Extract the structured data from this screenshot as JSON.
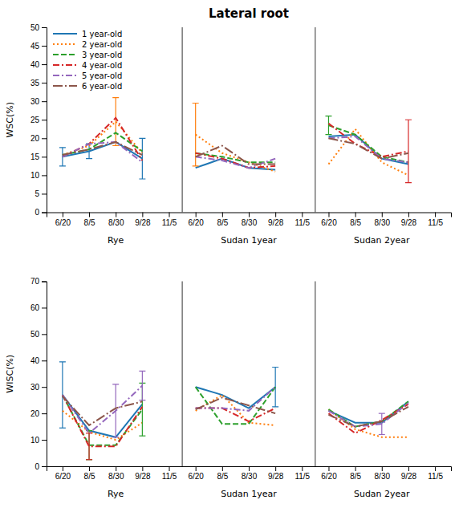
{
  "chart_data": [
    {
      "type": "line",
      "title": "Lateral root",
      "y_label": "WSC(%)",
      "categories": [
        "6/20",
        "8/5",
        "8/30",
        "9/28",
        "11/5",
        "6/20",
        "8/5",
        "8/30",
        "9/28",
        "11/5",
        "6/20",
        "8/5",
        "8/30",
        "9/28",
        "11/5"
      ],
      "annotations": [
        "Rye",
        "Sudan 1year",
        "Sudan 2year"
      ],
      "ylim": [
        0,
        50
      ],
      "yticks": [
        0,
        5,
        10,
        15,
        20,
        25,
        30,
        35,
        40,
        45,
        50
      ],
      "grid": false,
      "legend": "upper left",
      "series": [
        {
          "name": "1 year-old",
          "line_style": "solid",
          "values": [
            15.0,
            16.5,
            19.0,
            14.5,
            null,
            12.0,
            14.5,
            12.0,
            11.5,
            null,
            20.5,
            21.0,
            14.5,
            13.0,
            null
          ],
          "errors": [
            2.5,
            2.0,
            null,
            5.5,
            null,
            null,
            null,
            null,
            null,
            null,
            null,
            null,
            null,
            null,
            null
          ]
        },
        {
          "name": "2 year-old",
          "line_style": "dotted",
          "values": [
            15.5,
            18.0,
            24.5,
            16.0,
            null,
            21.0,
            16.0,
            13.5,
            11.0,
            null,
            13.0,
            22.5,
            13.5,
            10.0,
            null
          ],
          "errors": [
            null,
            null,
            6.5,
            null,
            null,
            8.5,
            null,
            null,
            null,
            null,
            null,
            null,
            null,
            null,
            null
          ]
        },
        {
          "name": "3 year-old",
          "line_style": "dashed",
          "values": [
            15.5,
            17.0,
            21.5,
            16.5,
            null,
            16.0,
            15.0,
            13.5,
            13.5,
            null,
            23.5,
            21.0,
            15.0,
            13.5,
            null
          ],
          "errors": [
            null,
            null,
            null,
            null,
            null,
            null,
            null,
            null,
            null,
            null,
            2.5,
            null,
            null,
            null,
            null
          ]
        },
        {
          "name": "4 year-old",
          "line_style": "dashdot",
          "values": [
            15.0,
            18.5,
            25.5,
            14.0,
            null,
            16.0,
            14.5,
            12.0,
            12.5,
            null,
            24.0,
            18.5,
            15.0,
            16.5,
            null
          ],
          "errors": [
            null,
            null,
            null,
            null,
            null,
            null,
            null,
            null,
            null,
            null,
            null,
            null,
            null,
            8.5,
            null
          ]
        },
        {
          "name": "5 year-old",
          "line_style": "dashdot",
          "values": [
            15.0,
            18.5,
            19.0,
            13.5,
            null,
            15.0,
            14.0,
            12.0,
            14.5,
            null,
            20.0,
            20.5,
            14.5,
            13.5,
            null
          ]
        },
        {
          "name": "6 year-old",
          "line_style": "longdashdot",
          "values": [
            15.5,
            17.0,
            19.0,
            15.5,
            null,
            15.0,
            18.0,
            13.0,
            13.0,
            null,
            20.0,
            18.5,
            14.5,
            16.0,
            null
          ]
        }
      ]
    },
    {
      "type": "line",
      "y_label": "WISC(%)",
      "categories": [
        "6/20",
        "8/5",
        "8/30",
        "9/28",
        "11/5",
        "6/20",
        "8/5",
        "8/30",
        "9/28",
        "11/5",
        "6/20",
        "8/5",
        "8/30",
        "9/28",
        "11/5"
      ],
      "annotations": [
        "Rye",
        "Sudan 1year",
        "Sudan 2year"
      ],
      "ylim": [
        0,
        70
      ],
      "yticks": [
        0,
        10,
        20,
        30,
        40,
        50,
        60,
        70
      ],
      "grid": false,
      "series": [
        {
          "line_style": "solid",
          "values": [
            27.0,
            13.5,
            11.0,
            23.5,
            null,
            30.0,
            27.0,
            22.0,
            30.0,
            null,
            21.0,
            16.5,
            16.5,
            24.5,
            null
          ],
          "errors": [
            12.5,
            null,
            null,
            null,
            null,
            null,
            null,
            null,
            7.5,
            null,
            null,
            null,
            null,
            null,
            null
          ]
        },
        {
          "line_style": "dotted",
          "values": [
            21.0,
            13.0,
            10.0,
            16.5,
            null,
            21.0,
            27.0,
            16.5,
            15.5,
            null,
            21.5,
            14.0,
            11.0,
            11.0,
            null
          ]
        },
        {
          "line_style": "dashed",
          "values": [
            27.0,
            8.0,
            8.0,
            21.5,
            null,
            30.0,
            16.0,
            16.0,
            30.0,
            null,
            21.5,
            15.0,
            17.0,
            24.5,
            null
          ],
          "errors": [
            null,
            5.5,
            null,
            10.0,
            null,
            null,
            null,
            null,
            null,
            null,
            null,
            null,
            null,
            null,
            null
          ]
        },
        {
          "line_style": "dashdot",
          "values": [
            27.0,
            7.5,
            7.5,
            22.5,
            null,
            22.0,
            22.0,
            17.0,
            22.0,
            null,
            20.0,
            12.5,
            17.5,
            23.5,
            null
          ],
          "errors": [
            null,
            5.0,
            null,
            null,
            null,
            null,
            null,
            null,
            null,
            null,
            null,
            null,
            null,
            null,
            null
          ]
        },
        {
          "line_style": "dashdot",
          "values": [
            27.0,
            12.5,
            21.0,
            30.5,
            null,
            22.0,
            22.0,
            21.0,
            30.0,
            null,
            21.0,
            15.0,
            16.0,
            24.0,
            null
          ],
          "errors": [
            null,
            null,
            10.0,
            5.5,
            null,
            null,
            null,
            null,
            null,
            null,
            null,
            null,
            4.0,
            null,
            null
          ]
        },
        {
          "line_style": "longdashdot",
          "values": [
            26.5,
            15.5,
            22.0,
            24.5,
            null,
            21.5,
            26.0,
            23.0,
            20.0,
            null,
            19.5,
            15.0,
            17.0,
            22.5,
            null
          ]
        }
      ]
    }
  ]
}
